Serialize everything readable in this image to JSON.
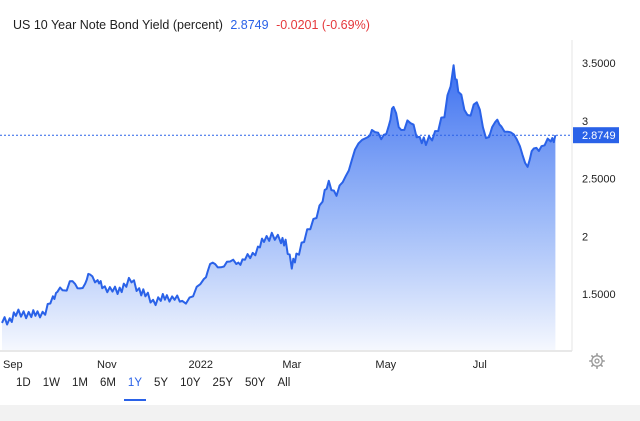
{
  "header": {
    "title": "US 10 Year Note Bond Yield (percent)",
    "last": "2.8749",
    "change": "-0.0201 (-0.69%)"
  },
  "colors": {
    "line": "#2a62e8",
    "area_top": "#3b6ff0",
    "area_bottom": "#f4f7fe",
    "badge": "#2a62e8",
    "change_negative": "#e5383b"
  },
  "ranges": [
    {
      "label": "1D",
      "active": false
    },
    {
      "label": "1W",
      "active": false
    },
    {
      "label": "1M",
      "active": false
    },
    {
      "label": "6M",
      "active": false
    },
    {
      "label": "1Y",
      "active": true
    },
    {
      "label": "5Y",
      "active": false
    },
    {
      "label": "10Y",
      "active": false
    },
    {
      "label": "25Y",
      "active": false
    },
    {
      "label": "50Y",
      "active": false
    },
    {
      "label": "All",
      "active": false
    }
  ],
  "settings_icon": "gear-icon",
  "chart_data": {
    "type": "area",
    "series": [
      {
        "x": [
          "2021-08-25",
          "2021-08-30",
          "2021-09-03",
          "2021-09-08",
          "2021-09-13",
          "2021-09-17",
          "2021-09-22",
          "2021-09-27",
          "2021-09-30",
          "2021-10-05",
          "2021-10-08",
          "2021-10-13",
          "2021-10-18",
          "2021-10-21",
          "2021-10-26",
          "2021-10-29",
          "2021-11-03",
          "2021-11-08",
          "2021-11-12",
          "2021-11-17",
          "2021-11-22",
          "2021-11-26",
          "2021-12-01",
          "2021-12-06",
          "2021-12-10",
          "2021-12-15",
          "2021-12-20",
          "2021-12-27",
          "2022-01-03",
          "2022-01-07",
          "2022-01-12",
          "2022-01-18",
          "2022-01-24",
          "2022-01-28",
          "2022-02-02",
          "2022-02-07",
          "2022-02-11",
          "2022-02-16",
          "2022-02-22",
          "2022-02-25",
          "2022-03-01",
          "2022-03-04",
          "2022-03-09",
          "2022-03-15",
          "2022-03-21",
          "2022-03-25",
          "2022-03-30",
          "2022-04-05",
          "2022-04-11",
          "2022-04-18",
          "2022-04-22",
          "2022-04-28",
          "2022-05-03",
          "2022-05-06",
          "2022-05-11",
          "2022-05-17",
          "2022-05-23",
          "2022-05-27",
          "2022-06-02",
          "2022-06-08",
          "2022-06-14",
          "2022-06-17",
          "2022-06-23",
          "2022-06-29",
          "2022-07-05",
          "2022-07-11",
          "2022-07-15",
          "2022-07-21",
          "2022-07-27",
          "2022-08-01",
          "2022-08-05",
          "2022-08-10",
          "2022-08-16",
          "2022-08-19"
        ],
        "y": [
          1.25,
          1.29,
          1.31,
          1.35,
          1.3,
          1.35,
          1.32,
          1.48,
          1.52,
          1.53,
          1.61,
          1.55,
          1.59,
          1.67,
          1.62,
          1.55,
          1.56,
          1.5,
          1.59,
          1.6,
          1.55,
          1.48,
          1.45,
          1.44,
          1.49,
          1.45,
          1.44,
          1.48,
          1.63,
          1.76,
          1.73,
          1.78,
          1.76,
          1.8,
          1.81,
          1.91,
          1.95,
          2.03,
          1.94,
          1.97,
          1.72,
          1.85,
          1.95,
          2.15,
          2.3,
          2.48,
          2.35,
          2.52,
          2.75,
          2.85,
          2.92,
          2.84,
          2.96,
          3.12,
          2.92,
          2.98,
          2.86,
          2.79,
          2.91,
          3.03,
          3.48,
          3.25,
          3.05,
          3.16,
          2.85,
          2.99,
          2.95,
          2.9,
          2.78,
          2.6,
          2.76,
          2.78,
          2.82,
          2.8749
        ]
      }
    ],
    "x_ticks": [
      "Sep",
      "Nov",
      "2022",
      "Mar",
      "May",
      "Jul"
    ],
    "y_ticks": [
      "1.5000",
      "2",
      "2.5000",
      "3",
      "3.5000"
    ],
    "y_tick_values": [
      1.5,
      2,
      2.5,
      3,
      3.5
    ],
    "ylim": [
      1.0,
      3.5
    ],
    "xlim": [
      "2021-08-25",
      "2022-08-22"
    ],
    "reference_line": 2.8749,
    "last_value_label": "2.8749",
    "grid": false,
    "title": "US 10 Year Note Bond Yield (percent)"
  }
}
